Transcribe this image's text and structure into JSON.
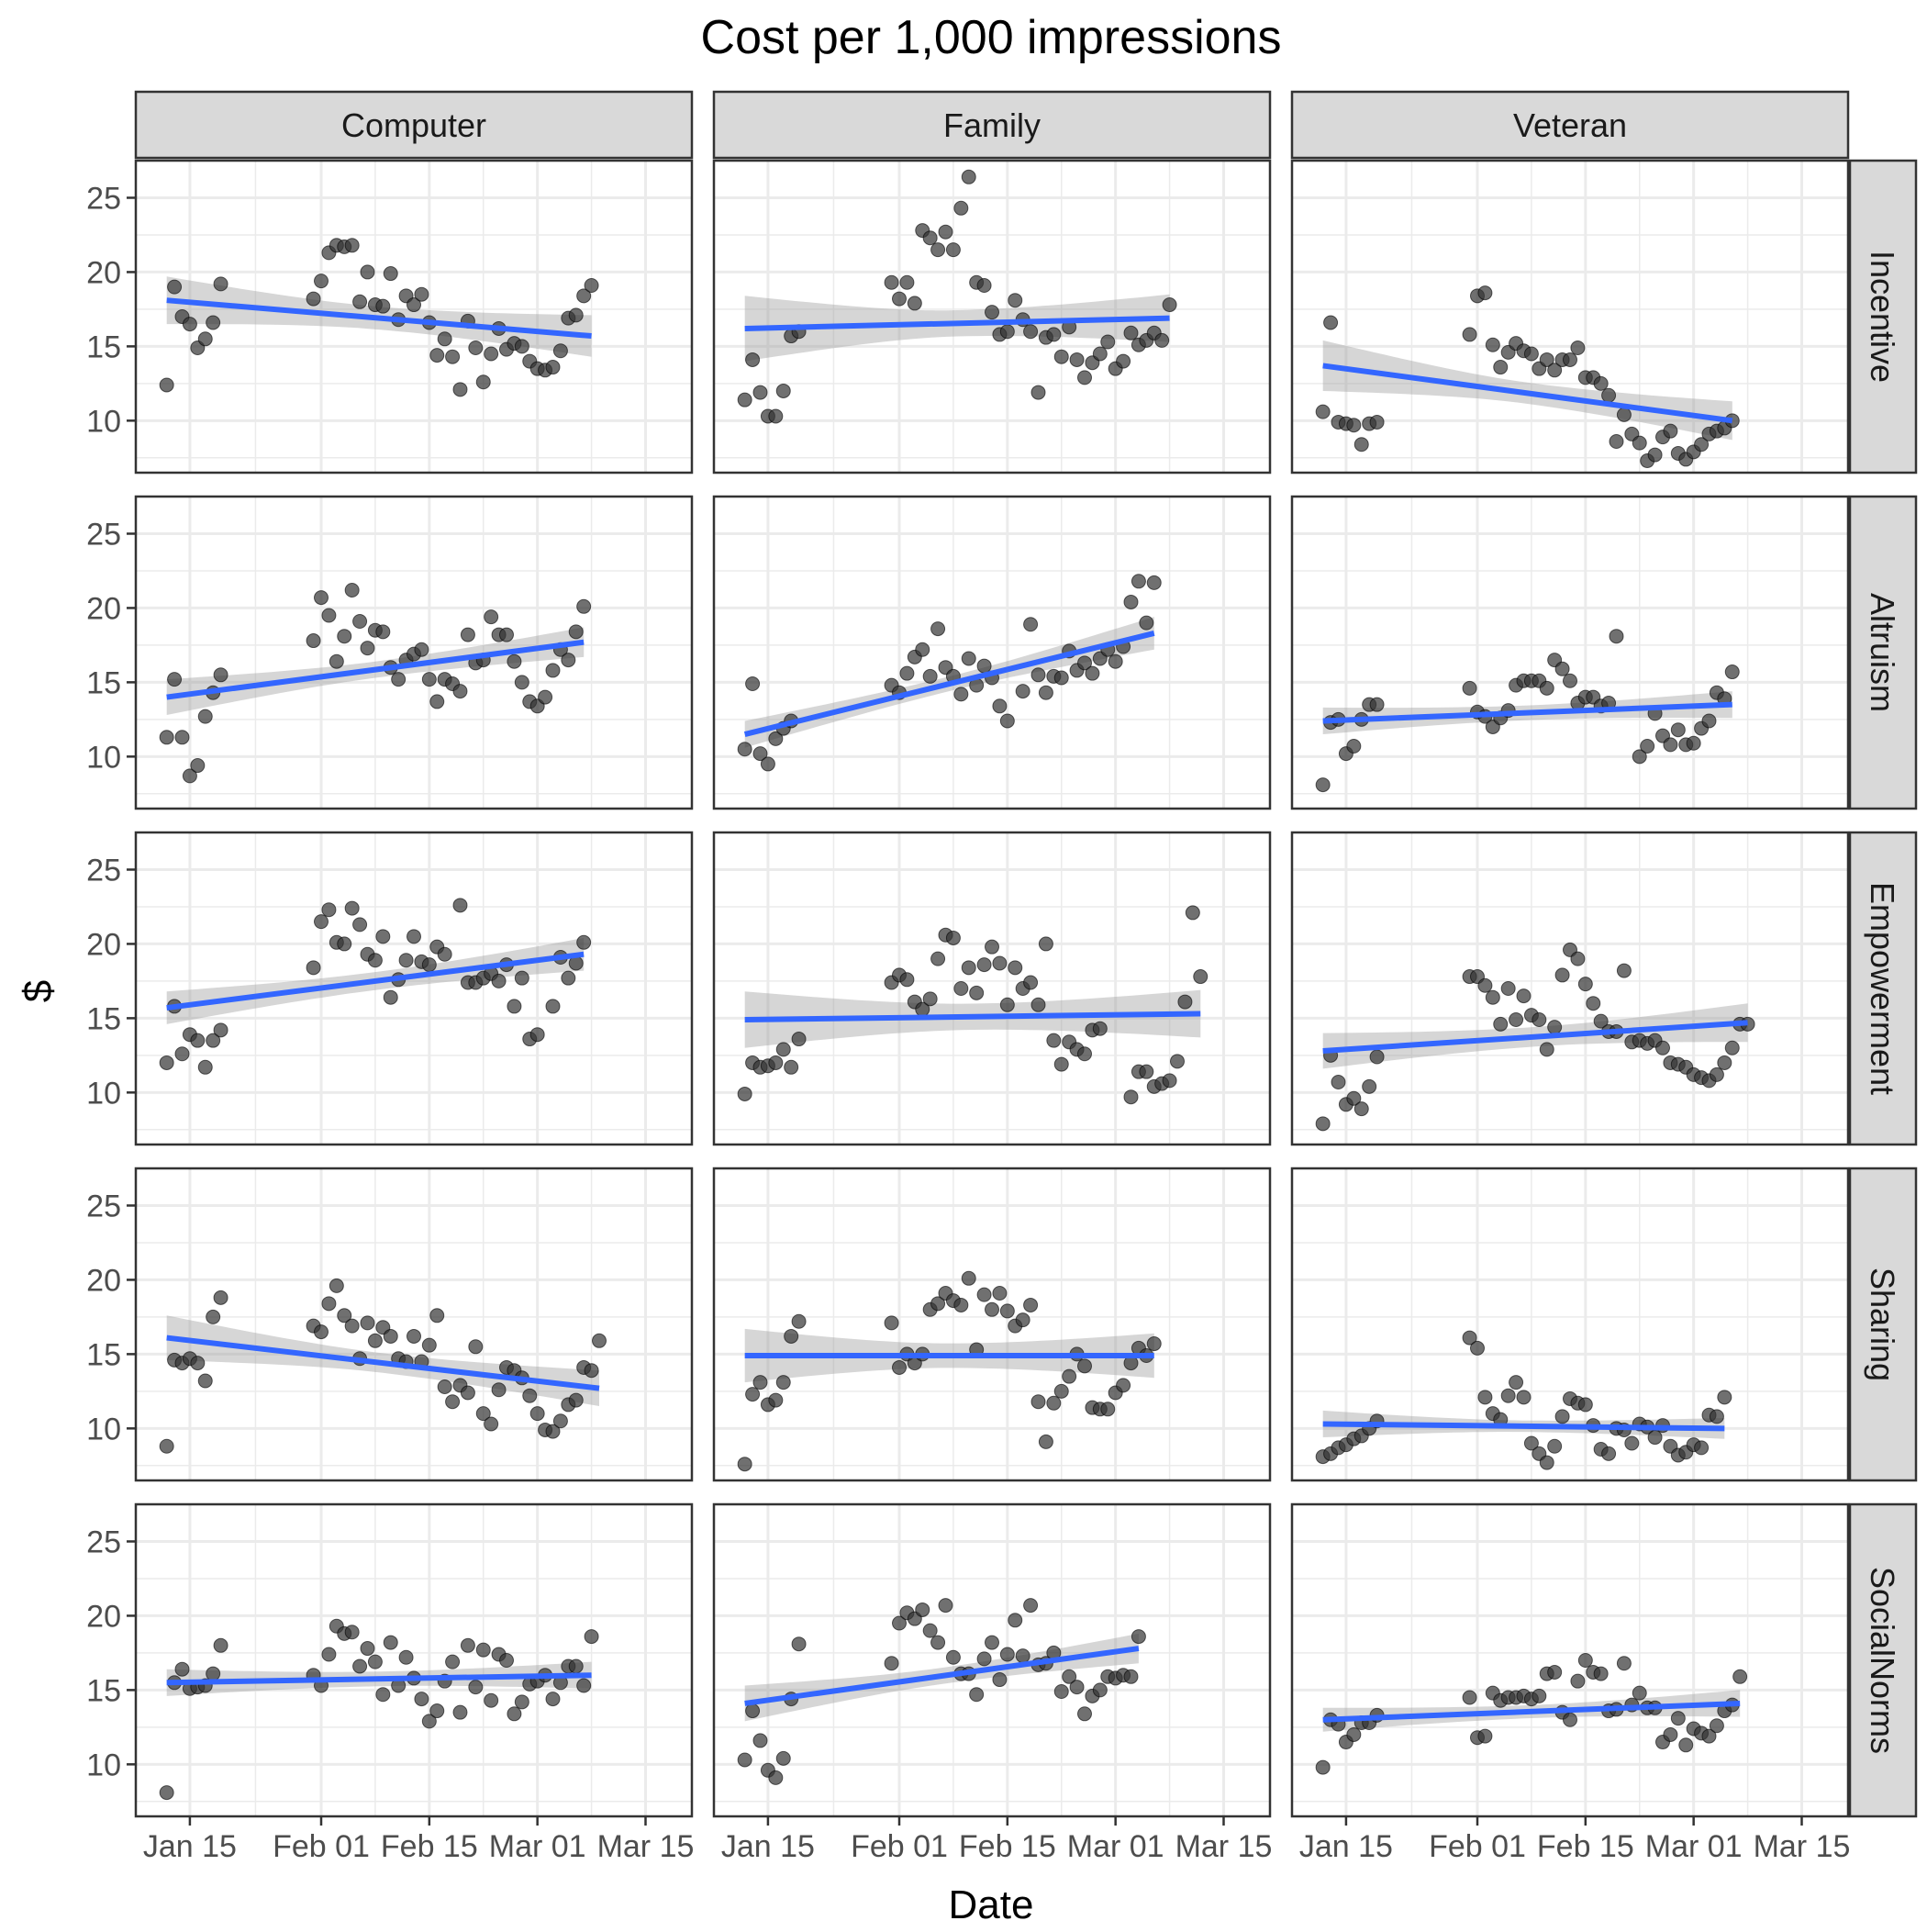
{
  "chart_data": {
    "type": "scatter",
    "title": "Cost per 1,000 impressions",
    "xlabel": "Date",
    "ylabel": "$",
    "column_facets": [
      "Computer",
      "Family",
      "Veteran"
    ],
    "row_facets": [
      "Incentive",
      "Altruism",
      "Empowerment",
      "Sharing",
      "SocialNorms"
    ],
    "x_ticks": [
      "Jan 15",
      "Feb 01",
      "Feb 15",
      "Mar 01",
      "Mar 15"
    ],
    "y_ticks": [
      10,
      15,
      20,
      25
    ],
    "ylim": [
      6.5,
      27.5
    ],
    "xlim": [
      "2018-01-08",
      "2018-03-21"
    ],
    "date_start": "2018-01-12",
    "grid": true,
    "trend": "linear fit with confidence band",
    "colors": {
      "point": "#333333",
      "trend_line": "#3366FF",
      "band": "#999999",
      "strip_fill": "#D9D9D9",
      "grid": "#EBEBEB"
    },
    "panels": [
      {
        "row": "Incentive",
        "col": "Computer",
        "fit": [
          18.1,
          15.7
        ],
        "band": [
          1.6,
          1.4
        ],
        "y": [
          12.4,
          19.0,
          17.0,
          16.5,
          14.9,
          15.5,
          16.6,
          19.2,
          null,
          null,
          null,
          null,
          null,
          null,
          null,
          null,
          null,
          null,
          null,
          18.2,
          19.4,
          21.3,
          21.8,
          21.7,
          21.8,
          18.0,
          20.0,
          17.8,
          17.7,
          19.9,
          16.8,
          18.4,
          17.8,
          18.5,
          16.6,
          14.4,
          15.5,
          14.3,
          12.1,
          16.7,
          14.9,
          12.6,
          14.5,
          16.2,
          14.8,
          15.2,
          15.0,
          14.0,
          13.5,
          13.4,
          13.6,
          14.7,
          16.9,
          17.1,
          18.4,
          19.1
        ]
      },
      {
        "row": "Incentive",
        "col": "Family",
        "fit": [
          16.2,
          16.9
        ],
        "band": [
          2.2,
          1.6
        ],
        "y": [
          11.4,
          14.1,
          11.9,
          10.3,
          10.3,
          12.0,
          15.7,
          16.0,
          null,
          null,
          null,
          null,
          null,
          null,
          null,
          null,
          null,
          null,
          null,
          19.3,
          18.2,
          19.3,
          17.9,
          22.8,
          22.3,
          21.5,
          22.7,
          21.5,
          24.3,
          26.4,
          19.3,
          19.1,
          17.3,
          15.8,
          16.0,
          18.1,
          16.8,
          16.0,
          11.9,
          15.6,
          15.8,
          14.3,
          16.3,
          14.1,
          12.9,
          13.9,
          14.5,
          15.3,
          13.5,
          14.0,
          15.9,
          15.1,
          15.4,
          15.9,
          15.4,
          17.8
        ]
      },
      {
        "row": "Incentive",
        "col": "Veteran",
        "fit": [
          13.7,
          10.0
        ],
        "band": [
          1.7,
          1.3
        ],
        "y": [
          10.6,
          16.6,
          9.9,
          9.8,
          9.7,
          8.4,
          9.8,
          9.9,
          null,
          null,
          null,
          null,
          null,
          null,
          null,
          null,
          null,
          null,
          null,
          15.8,
          18.4,
          18.6,
          15.1,
          13.6,
          14.6,
          15.2,
          14.7,
          14.5,
          13.5,
          14.1,
          13.4,
          14.1,
          14.1,
          14.9,
          12.9,
          12.9,
          12.5,
          11.7,
          8.6,
          10.4,
          9.1,
          8.5,
          7.3,
          7.7,
          8.9,
          9.3,
          7.8,
          7.4,
          7.9,
          8.4,
          9.1,
          9.3,
          9.5,
          10.0,
          null,
          null
        ]
      },
      {
        "row": "Altruism",
        "col": "Computer",
        "fit": [
          14.0,
          17.7
        ],
        "band": [
          1.2,
          1.0
        ],
        "y": [
          11.3,
          15.2,
          11.3,
          8.7,
          9.4,
          12.7,
          14.3,
          15.5,
          null,
          null,
          null,
          null,
          null,
          null,
          null,
          null,
          null,
          null,
          null,
          17.8,
          20.7,
          19.5,
          16.4,
          18.1,
          21.2,
          19.1,
          17.3,
          18.5,
          18.4,
          16.0,
          15.2,
          16.5,
          16.9,
          17.2,
          15.2,
          13.7,
          15.2,
          14.9,
          14.4,
          18.2,
          16.3,
          16.5,
          19.4,
          18.2,
          18.2,
          16.4,
          15.0,
          13.7,
          13.4,
          14.0,
          15.8,
          17.2,
          16.5,
          18.4,
          20.1,
          null
        ]
      },
      {
        "row": "Altruism",
        "col": "Family",
        "fit": [
          11.5,
          18.3
        ],
        "band": [
          0.9,
          1.1
        ],
        "y": [
          10.5,
          14.9,
          10.2,
          9.5,
          11.2,
          11.9,
          12.4,
          null,
          null,
          null,
          null,
          null,
          null,
          null,
          null,
          null,
          null,
          null,
          null,
          14.8,
          14.3,
          15.6,
          16.7,
          17.2,
          15.4,
          18.6,
          16.0,
          15.4,
          14.2,
          16.6,
          14.8,
          16.1,
          15.3,
          13.4,
          12.4,
          null,
          14.4,
          18.9,
          15.5,
          14.3,
          15.4,
          15.3,
          17.1,
          15.8,
          16.3,
          15.6,
          16.6,
          17.2,
          16.4,
          17.4,
          20.4,
          21.8,
          19.0,
          21.7,
          null,
          null
        ]
      },
      {
        "row": "Altruism",
        "col": "Veteran",
        "fit": [
          12.4,
          13.5
        ],
        "band": [
          0.9,
          0.9
        ],
        "y": [
          8.1,
          12.3,
          12.5,
          10.2,
          10.7,
          12.5,
          13.5,
          13.5,
          null,
          null,
          null,
          null,
          null,
          null,
          null,
          null,
          null,
          null,
          null,
          14.6,
          13.0,
          12.7,
          12.0,
          12.6,
          13.1,
          14.8,
          15.1,
          15.1,
          15.1,
          14.6,
          16.5,
          15.9,
          15.1,
          13.6,
          14.0,
          14.0,
          13.4,
          13.6,
          18.1,
          null,
          null,
          10.0,
          10.7,
          12.9,
          11.4,
          10.8,
          11.8,
          10.8,
          10.9,
          11.9,
          12.4,
          14.3,
          13.9,
          15.7,
          null,
          null
        ]
      },
      {
        "row": "Empowerment",
        "col": "Computer",
        "fit": [
          15.7,
          19.3
        ],
        "band": [
          1.1,
          1.1
        ],
        "y": [
          12.0,
          15.8,
          12.6,
          13.9,
          13.5,
          11.7,
          13.5,
          14.2,
          null,
          null,
          null,
          null,
          null,
          null,
          null,
          null,
          null,
          null,
          null,
          18.4,
          21.5,
          22.3,
          20.1,
          20.0,
          22.4,
          21.3,
          19.3,
          18.9,
          20.5,
          16.4,
          17.6,
          18.9,
          20.5,
          18.8,
          18.6,
          19.8,
          19.3,
          null,
          22.6,
          17.4,
          17.4,
          17.7,
          18.0,
          17.5,
          18.6,
          15.8,
          17.7,
          13.6,
          13.9,
          null,
          15.8,
          19.1,
          17.7,
          18.7,
          20.1,
          null
        ]
      },
      {
        "row": "Empowerment",
        "col": "Family",
        "fit": [
          14.9,
          15.3
        ],
        "band": [
          1.9,
          1.6
        ],
        "y": [
          9.9,
          12.0,
          11.7,
          11.8,
          12.0,
          12.9,
          11.7,
          13.6,
          null,
          null,
          null,
          null,
          null,
          null,
          null,
          null,
          null,
          null,
          null,
          17.4,
          17.9,
          17.6,
          16.1,
          15.6,
          16.3,
          19.0,
          20.6,
          20.4,
          17.0,
          18.4,
          16.7,
          18.6,
          19.8,
          18.7,
          15.9,
          18.4,
          17.0,
          17.4,
          15.9,
          20.0,
          13.5,
          11.9,
          13.4,
          12.9,
          12.6,
          14.2,
          14.3,
          null,
          null,
          null,
          9.7,
          11.4,
          11.4,
          10.4,
          10.6,
          10.8,
          12.1,
          16.1,
          22.1,
          17.8
        ]
      },
      {
        "row": "Empowerment",
        "col": "Veteran",
        "fit": [
          12.8,
          14.7
        ],
        "band": [
          1.2,
          1.3
        ],
        "y": [
          7.9,
          12.5,
          10.7,
          9.2,
          9.6,
          8.9,
          10.4,
          12.4,
          null,
          null,
          null,
          null,
          null,
          null,
          null,
          null,
          null,
          null,
          null,
          17.8,
          17.8,
          17.2,
          16.4,
          14.6,
          17.0,
          14.9,
          16.5,
          15.2,
          14.9,
          12.9,
          14.4,
          17.9,
          19.6,
          19.0,
          17.3,
          16.0,
          14.8,
          14.1,
          14.1,
          18.2,
          13.4,
          13.5,
          13.3,
          13.5,
          13.0,
          12.0,
          11.9,
          11.7,
          11.2,
          11.0,
          10.8,
          11.2,
          12.0,
          13.0,
          14.6,
          14.6
        ]
      },
      {
        "row": "Sharing",
        "col": "Computer",
        "fit": [
          16.1,
          12.7
        ],
        "band": [
          1.5,
          1.2
        ],
        "y": [
          8.8,
          14.6,
          14.4,
          14.7,
          14.4,
          13.2,
          17.5,
          18.8,
          null,
          null,
          null,
          null,
          null,
          null,
          null,
          null,
          null,
          null,
          null,
          16.9,
          16.5,
          18.4,
          19.6,
          17.6,
          16.9,
          14.7,
          17.1,
          15.9,
          16.8,
          16.2,
          14.7,
          14.5,
          16.2,
          14.5,
          15.6,
          17.6,
          12.8,
          11.8,
          12.9,
          12.4,
          15.5,
          11.0,
          10.3,
          12.6,
          14.1,
          13.9,
          13.4,
          12.2,
          11.0,
          9.9,
          9.8,
          10.5,
          11.6,
          11.9,
          14.1,
          13.9,
          15.9
        ]
      },
      {
        "row": "Sharing",
        "col": "Family",
        "fit": [
          14.9,
          14.9
        ],
        "band": [
          1.8,
          1.5
        ],
        "y": [
          7.6,
          12.3,
          13.1,
          11.6,
          11.9,
          13.1,
          16.2,
          17.2,
          null,
          null,
          null,
          null,
          null,
          null,
          null,
          null,
          null,
          null,
          null,
          17.1,
          14.1,
          15.0,
          14.4,
          15.0,
          18.0,
          18.4,
          19.1,
          18.6,
          18.3,
          20.1,
          15.3,
          19.0,
          18.0,
          19.1,
          17.9,
          16.9,
          17.3,
          18.3,
          11.8,
          9.1,
          11.7,
          12.5,
          13.5,
          15.0,
          14.2,
          11.4,
          11.3,
          11.3,
          12.4,
          12.9,
          14.4,
          15.4,
          14.9,
          15.7,
          null,
          null
        ]
      },
      {
        "row": "Sharing",
        "col": "Veteran",
        "fit": [
          10.3,
          10.0
        ],
        "band": [
          0.9,
          0.7
        ],
        "y": [
          8.1,
          8.3,
          8.7,
          8.9,
          9.3,
          9.5,
          10.0,
          10.5,
          null,
          null,
          null,
          null,
          null,
          null,
          null,
          null,
          null,
          null,
          null,
          16.1,
          15.4,
          12.1,
          11.0,
          10.6,
          12.2,
          13.1,
          12.1,
          9.0,
          8.3,
          7.7,
          8.8,
          10.8,
          12.0,
          11.7,
          11.6,
          10.2,
          8.6,
          8.3,
          10.0,
          9.9,
          9.0,
          10.3,
          10.1,
          9.4,
          10.2,
          8.8,
          8.2,
          8.4,
          8.9,
          8.7,
          10.9,
          10.8,
          12.1,
          null,
          null,
          null
        ]
      },
      {
        "row": "SocialNorms",
        "col": "Computer",
        "fit": [
          15.5,
          16.0
        ],
        "band": [
          0.9,
          0.9
        ],
        "y": [
          8.1,
          15.5,
          16.4,
          15.1,
          15.2,
          15.3,
          16.1,
          18.0,
          null,
          null,
          null,
          null,
          null,
          null,
          null,
          null,
          null,
          null,
          null,
          16.0,
          15.3,
          17.4,
          19.3,
          18.8,
          18.9,
          16.6,
          17.8,
          16.9,
          14.7,
          18.2,
          15.3,
          17.2,
          15.8,
          14.4,
          12.9,
          13.6,
          15.6,
          16.9,
          13.5,
          18.0,
          15.2,
          17.7,
          14.3,
          17.4,
          17.0,
          13.4,
          14.2,
          15.4,
          15.6,
          16.0,
          14.4,
          15.5,
          16.6,
          16.6,
          15.3,
          18.6
        ]
      },
      {
        "row": "SocialNorms",
        "col": "Family",
        "fit": [
          14.1,
          17.8
        ],
        "band": [
          1.2,
          1.0
        ],
        "y": [
          10.3,
          13.6,
          11.6,
          9.6,
          9.1,
          10.4,
          14.4,
          18.1,
          null,
          null,
          null,
          null,
          null,
          null,
          null,
          null,
          null,
          null,
          null,
          16.8,
          19.5,
          20.2,
          19.8,
          20.4,
          19.0,
          18.2,
          20.7,
          17.2,
          16.1,
          16.1,
          14.7,
          17.1,
          18.2,
          15.7,
          17.4,
          19.7,
          17.3,
          20.7,
          16.7,
          16.8,
          17.5,
          14.9,
          15.9,
          15.2,
          13.4,
          14.6,
          15.0,
          15.9,
          15.8,
          16.0,
          15.9,
          18.6,
          null,
          null,
          null,
          null
        ]
      },
      {
        "row": "SocialNorms",
        "col": "Veteran",
        "fit": [
          13.0,
          14.1
        ],
        "band": [
          0.8,
          0.9
        ],
        "y": [
          9.8,
          13.0,
          12.7,
          11.5,
          12.0,
          12.8,
          12.8,
          13.3,
          null,
          null,
          null,
          null,
          null,
          null,
          null,
          null,
          null,
          null,
          null,
          14.5,
          11.8,
          11.9,
          14.8,
          14.3,
          14.5,
          14.5,
          14.6,
          14.4,
          14.6,
          16.1,
          16.2,
          13.5,
          13.0,
          15.6,
          17.0,
          16.2,
          16.1,
          13.6,
          13.7,
          16.8,
          14.0,
          14.8,
          13.8,
          13.8,
          11.5,
          12.0,
          13.1,
          11.3,
          12.4,
          12.1,
          11.9,
          12.6,
          13.6,
          14.0,
          15.9,
          null
        ]
      }
    ]
  }
}
